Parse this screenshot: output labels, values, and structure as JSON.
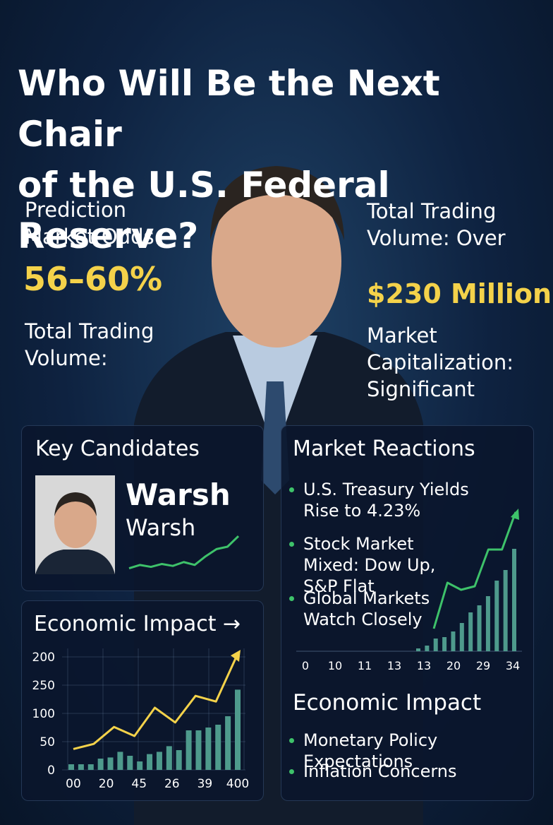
{
  "header": {
    "title_lines": [
      "Who Will Be the Next Chair",
      "of the U.S. Federal Reserve?"
    ]
  },
  "left_stats": {
    "odds_label": "Prediction Market Odds:",
    "odds_value": "56–60%",
    "volume_label": "Total Trading Volume:"
  },
  "right_stats": {
    "volume_label": "Total Trading Volume: Over",
    "volume_value": "$230 Million",
    "cap_label": "Market Capitalization: Significant"
  },
  "key_candidates": {
    "title": "Key Candidates",
    "name": "Warsh",
    "subname": "Warsh",
    "sparkline": {
      "ylim": [
        0,
        100
      ],
      "values": [
        5,
        12,
        8,
        14,
        10,
        18,
        12,
        30,
        45,
        50,
        72
      ]
    }
  },
  "economic_impact_chart": {
    "title": "Economic Impact →",
    "y_labels": [
      "200",
      "250",
      "100",
      "50",
      "0"
    ],
    "x_labels": [
      "00",
      "20",
      "45",
      "26",
      "39",
      "400"
    ],
    "ylim": [
      0,
      200
    ],
    "bars": [
      10,
      10,
      10,
      20,
      22,
      32,
      25,
      15,
      28,
      32,
      42,
      35,
      70,
      70,
      75,
      80,
      95,
      142
    ],
    "line": [
      37,
      46,
      76,
      60,
      110,
      84,
      131,
      121,
      200
    ]
  },
  "market_reactions": {
    "title": "Market Reactions",
    "bullets": [
      "U.S. Treasury Yields Rise to 4.23%",
      "Stock Market Mixed: Dow Up, S&P Flat",
      "Global Markets Watch Closely"
    ],
    "chart": {
      "x_labels": [
        "0",
        "10",
        "11",
        "13",
        "13",
        "20",
        "29",
        "34"
      ],
      "ylim": [
        0,
        200
      ],
      "bars": [
        4,
        8,
        18,
        20,
        28,
        40,
        55,
        65,
        78,
        100,
        115,
        145
      ],
      "line": [
        32,
        97,
        87,
        92,
        144,
        144,
        197
      ]
    }
  },
  "economic_impact": {
    "title": "Economic Impact",
    "bullets": [
      "Monetary Policy Expectations",
      "Inflation Concerns"
    ]
  }
}
